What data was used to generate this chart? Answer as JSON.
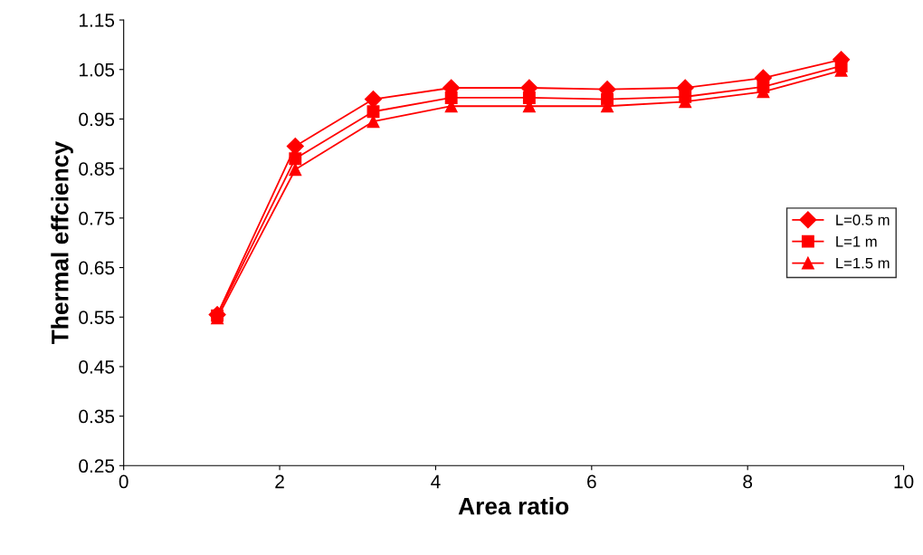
{
  "chart_data": {
    "type": "line",
    "xlabel": "Area ratio",
    "ylabel": "Thermal effciency",
    "x": [
      1.2,
      2.2,
      3.2,
      4.2,
      5.2,
      6.2,
      7.2,
      8.2,
      9.2
    ],
    "series": [
      {
        "name": "L=0.5 m",
        "color": "#ff0000",
        "marker": "diamond",
        "values": [
          0.555,
          0.895,
          0.99,
          1.013,
          1.013,
          1.01,
          1.013,
          1.033,
          1.07
        ]
      },
      {
        "name": "L=1 m",
        "color": "#ff0000",
        "marker": "square",
        "values": [
          0.553,
          0.87,
          0.965,
          0.993,
          0.993,
          0.99,
          0.995,
          1.015,
          1.057
        ]
      },
      {
        "name": "L=1.5 m",
        "color": "#ff0000",
        "marker": "triangle",
        "values": [
          0.548,
          0.848,
          0.945,
          0.976,
          0.976,
          0.976,
          0.985,
          1.005,
          1.048
        ]
      }
    ],
    "xlim": [
      0,
      10
    ],
    "xticks": [
      0,
      2,
      4,
      6,
      8,
      10
    ],
    "ylim": [
      0.25,
      1.15
    ],
    "yticks": [
      {
        "value": 0.25,
        "label": "0.25"
      },
      {
        "value": 0.35,
        "label": "0.35"
      },
      {
        "value": 0.45,
        "label": "0.45"
      },
      {
        "value": 0.55,
        "label": "0.55"
      },
      {
        "value": 0.65,
        "label": "0.65"
      },
      {
        "value": 0.75,
        "label": "0.75"
      },
      {
        "value": 0.85,
        "label": "0.85"
      },
      {
        "value": 0.95,
        "label": "0.95"
      },
      {
        "value": 1.05,
        "label": "1.05"
      },
      {
        "value": 1.15,
        "label": "1.15"
      }
    ],
    "grid": false,
    "legend": "right",
    "line_style": "solid"
  }
}
